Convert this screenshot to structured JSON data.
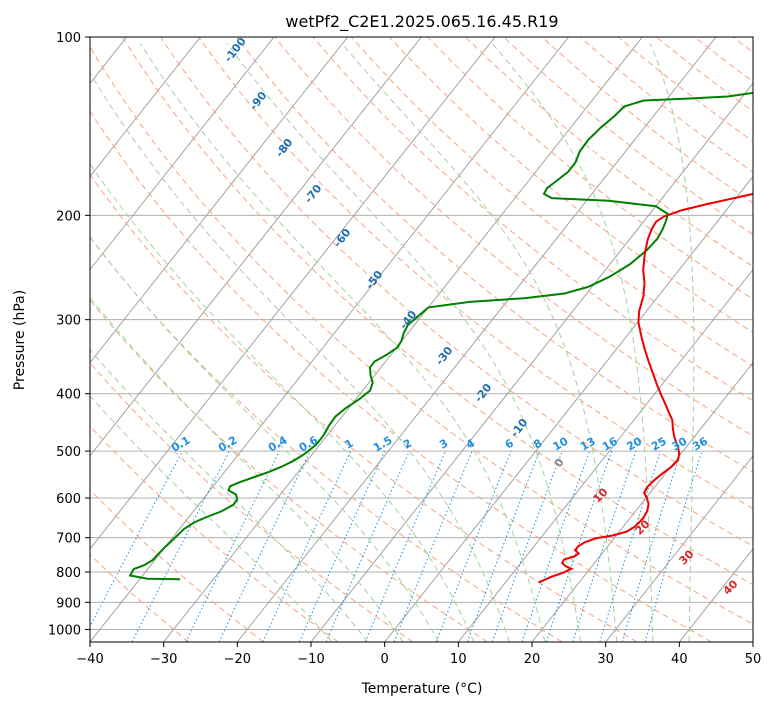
{
  "chart_data": {
    "type": "line",
    "title": "wetPf2_C2E1.2025.065.16.45.R19",
    "xlabel": "Temperature (°C)",
    "ylabel": "Pressure (hPa)",
    "xlim": [
      -40,
      50
    ],
    "ylim": [
      1050,
      100
    ],
    "y_scale": "log",
    "grid": true,
    "x_ticks": [
      {
        "value": -40,
        "label": "−40"
      },
      {
        "value": -30,
        "label": "−30"
      },
      {
        "value": -20,
        "label": "−20"
      },
      {
        "value": -10,
        "label": "−10"
      },
      {
        "value": 0,
        "label": "0"
      },
      {
        "value": 10,
        "label": "10"
      },
      {
        "value": 20,
        "label": "20"
      },
      {
        "value": 30,
        "label": "30"
      },
      {
        "value": 40,
        "label": "40"
      },
      {
        "value": 50,
        "label": "50"
      }
    ],
    "y_ticks": [
      {
        "value": 100,
        "label": "100"
      },
      {
        "value": 200,
        "label": "200"
      },
      {
        "value": 300,
        "label": "300"
      },
      {
        "value": 400,
        "label": "400"
      },
      {
        "value": 500,
        "label": "500"
      },
      {
        "value": 600,
        "label": "600"
      },
      {
        "value": 700,
        "label": "700"
      },
      {
        "value": 800,
        "label": "800"
      },
      {
        "value": 900,
        "label": "900"
      },
      {
        "value": 1000,
        "label": "1000"
      }
    ],
    "colors": {
      "temperature": "#ee0000",
      "dewpoint": "#008000",
      "isotherm": "#999999",
      "dry_adiabat": "#f4a582",
      "moist_adiabat": "#9fd49f",
      "mixing_ratio": "#1f8fe0",
      "label_moist": "#1f6fb0",
      "label_dry": "#d62728"
    },
    "series": [
      {
        "id": "temperature",
        "points": [
          [
            833,
            14.5
          ],
          [
            815,
            15.6
          ],
          [
            802,
            16.8
          ],
          [
            790,
            17.5
          ],
          [
            782,
            16.4
          ],
          [
            772,
            15.6
          ],
          [
            762,
            15.5
          ],
          [
            752,
            16.6
          ],
          [
            744,
            16.8
          ],
          [
            735,
            16.0
          ],
          [
            724,
            16.0
          ],
          [
            712,
            16.5
          ],
          [
            702,
            17.5
          ],
          [
            694,
            19.5
          ],
          [
            684,
            21.0
          ],
          [
            670,
            21.6
          ],
          [
            650,
            21.8
          ],
          [
            632,
            21.6
          ],
          [
            614,
            21.0
          ],
          [
            598,
            20.0
          ],
          [
            588,
            19.2
          ],
          [
            575,
            19.0
          ],
          [
            560,
            19.2
          ],
          [
            546,
            19.6
          ],
          [
            532,
            20.1
          ],
          [
            518,
            20.3
          ],
          [
            504,
            19.7
          ],
          [
            494,
            19.0
          ],
          [
            484,
            18.2
          ],
          [
            472,
            17.2
          ],
          [
            458,
            16.2
          ],
          [
            443,
            15.2
          ],
          [
            430,
            13.9
          ],
          [
            416,
            12.5
          ],
          [
            400,
            10.8
          ],
          [
            386,
            9.3
          ],
          [
            370,
            7.6
          ],
          [
            352,
            5.6
          ],
          [
            336,
            3.8
          ],
          [
            320,
            2.0
          ],
          [
            303,
            0.1
          ],
          [
            290,
            -1.0
          ],
          [
            274,
            -2.0
          ],
          [
            260,
            -3.3
          ],
          [
            247,
            -4.9
          ],
          [
            233,
            -6.3
          ],
          [
            220,
            -7.5
          ],
          [
            211,
            -8.1
          ],
          [
            205,
            -8.3
          ],
          [
            201,
            -7.8
          ],
          [
            196,
            -6.0
          ],
          [
            191,
            -3.0
          ],
          [
            186,
            0.5
          ],
          [
            181,
            4.0
          ],
          [
            176,
            7.5
          ],
          [
            171,
            9.8
          ],
          [
            167,
            10.8
          ],
          [
            162,
            11.0
          ],
          [
            157,
            11.3
          ],
          [
            152,
            12.2
          ],
          [
            146,
            13.6
          ],
          [
            140,
            15.2
          ],
          [
            134,
            16.7
          ],
          [
            128,
            17.1
          ],
          [
            121,
            17.2
          ],
          [
            114,
            17.0
          ],
          [
            107,
            17.3
          ],
          [
            100,
            17.6
          ]
        ]
      },
      {
        "id": "dewpoint",
        "points": [
          [
            823,
            -34.5
          ],
          [
            821,
            -39.0
          ],
          [
            811,
            -41.7
          ],
          [
            791,
            -41.9
          ],
          [
            779,
            -40.9
          ],
          [
            764,
            -40.3
          ],
          [
            747,
            -40.2
          ],
          [
            727,
            -40.0
          ],
          [
            703,
            -39.7
          ],
          [
            677,
            -39.4
          ],
          [
            660,
            -38.7
          ],
          [
            646,
            -37.6
          ],
          [
            632,
            -36.2
          ],
          [
            616,
            -35.3
          ],
          [
            604,
            -35.3
          ],
          [
            592,
            -36.0
          ],
          [
            582,
            -37.5
          ],
          [
            573,
            -37.7
          ],
          [
            564,
            -36.8
          ],
          [
            553,
            -35.4
          ],
          [
            542,
            -34.0
          ],
          [
            531,
            -32.8
          ],
          [
            520,
            -31.9
          ],
          [
            506,
            -31.1
          ],
          [
            488,
            -30.5
          ],
          [
            470,
            -30.5
          ],
          [
            453,
            -30.8
          ],
          [
            437,
            -30.9
          ],
          [
            423,
            -30.4
          ],
          [
            408,
            -29.5
          ],
          [
            395,
            -29.0
          ],
          [
            383,
            -29.5
          ],
          [
            372,
            -30.6
          ],
          [
            361,
            -31.5
          ],
          [
            353,
            -31.5
          ],
          [
            344,
            -30.6
          ],
          [
            334,
            -29.9
          ],
          [
            325,
            -30.1
          ],
          [
            316,
            -30.6
          ],
          [
            306,
            -30.9
          ],
          [
            295,
            -30.4
          ],
          [
            286,
            -30.0
          ],
          [
            280,
            -25.0
          ],
          [
            276,
            -18.0
          ],
          [
            271,
            -13.0
          ],
          [
            264,
            -10.5
          ],
          [
            254,
            -8.7
          ],
          [
            242,
            -7.3
          ],
          [
            229,
            -6.5
          ],
          [
            219,
            -6.3
          ],
          [
            211,
            -6.6
          ],
          [
            205,
            -7.0
          ],
          [
            199,
            -7.5
          ],
          [
            193,
            -10.0
          ],
          [
            189,
            -17.0
          ],
          [
            187,
            -25.0
          ],
          [
            184,
            -26.5
          ],
          [
            180,
            -26.7
          ],
          [
            175,
            -26.2
          ],
          [
            169,
            -25.6
          ],
          [
            163,
            -25.6
          ],
          [
            156,
            -26.2
          ],
          [
            149,
            -26.3
          ],
          [
            142,
            -25.9
          ],
          [
            136,
            -25.3
          ],
          [
            131,
            -25.0
          ],
          [
            128,
            -23.0
          ],
          [
            127,
            -17.0
          ],
          [
            126,
            -12.0
          ],
          [
            124,
            -8.5
          ],
          [
            121,
            -6.5
          ],
          [
            117,
            -5.1
          ],
          [
            112,
            -4.1
          ],
          [
            106,
            -3.2
          ],
          [
            100,
            -2.2
          ]
        ]
      }
    ],
    "moist_adiabat_labels": [
      "-100",
      "-90",
      "-80",
      "-70",
      "-60",
      "-50",
      "-40",
      "-30",
      "-20",
      "-10",
      "0"
    ],
    "dry_adiabat_labels": [
      "10",
      "20",
      "30",
      "40"
    ],
    "mixing_ratios": [
      {
        "label": "0.1",
        "value": 0.1
      },
      {
        "label": "0.2",
        "value": 0.2
      },
      {
        "label": "0.4",
        "value": 0.4
      },
      {
        "label": "0.6",
        "value": 0.6
      },
      {
        "label": "1",
        "value": 1
      },
      {
        "label": "1.5",
        "value": 1.5
      },
      {
        "label": "2",
        "value": 2
      },
      {
        "label": "3",
        "value": 3
      },
      {
        "label": "4",
        "value": 4
      },
      {
        "label": "6",
        "value": 6
      },
      {
        "label": "8",
        "value": 8
      },
      {
        "label": "10",
        "value": 10
      },
      {
        "label": "13",
        "value": 13
      },
      {
        "label": "16",
        "value": 16
      },
      {
        "label": "20",
        "value": 20
      },
      {
        "label": "25",
        "value": 25
      },
      {
        "label": "30",
        "value": 30
      },
      {
        "label": "36",
        "value": 36
      }
    ]
  }
}
